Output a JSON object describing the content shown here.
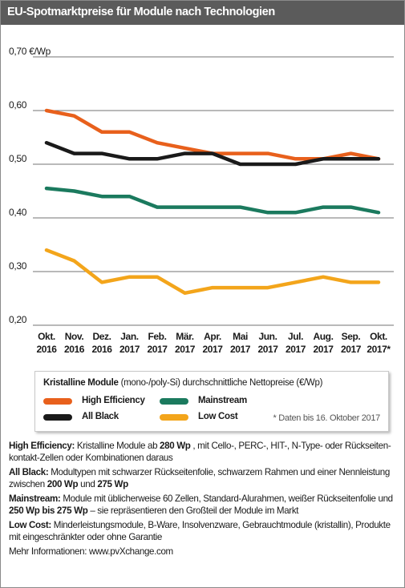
{
  "chart_data": {
    "type": "line",
    "title": "EU-Spotmarktpreise für Module nach Technologien",
    "categories": [
      "Okt. 2016",
      "Nov. 2016",
      "Dez. 2016",
      "Jan. 2017",
      "Feb. 2017",
      "Mär. 2017",
      "Apr. 2017",
      "Mai 2017",
      "Jun. 2017",
      "Jul. 2017",
      "Aug. 2017",
      "Sep. 2017",
      "Okt. 2017*"
    ],
    "series": [
      {
        "name": "High Efficiency",
        "color": "#e8601c",
        "values": [
          0.6,
          0.59,
          0.56,
          0.56,
          0.54,
          0.53,
          0.52,
          0.52,
          0.52,
          0.51,
          0.51,
          0.52,
          0.51
        ]
      },
      {
        "name": "All Black",
        "color": "#1a1a1a",
        "values": [
          0.54,
          0.52,
          0.52,
          0.51,
          0.51,
          0.52,
          0.52,
          0.5,
          0.5,
          0.5,
          0.51,
          0.51,
          0.51
        ]
      },
      {
        "name": "Mainstream",
        "color": "#1b7a5e",
        "values": [
          0.455,
          0.45,
          0.44,
          0.44,
          0.42,
          0.42,
          0.42,
          0.42,
          0.41,
          0.41,
          0.42,
          0.42,
          0.41
        ]
      },
      {
        "name": "Low Cost",
        "color": "#f3a51b",
        "values": [
          0.34,
          0.32,
          0.28,
          0.29,
          0.29,
          0.26,
          0.27,
          0.27,
          0.27,
          0.28,
          0.29,
          0.28,
          0.28
        ]
      }
    ],
    "ylim": [
      0.2,
      0.7
    ],
    "yticks": [
      {
        "value": 0.7,
        "label": "0,70 €/Wp"
      },
      {
        "value": 0.6,
        "label": "0,60"
      },
      {
        "value": 0.5,
        "label": "0,50"
      },
      {
        "value": 0.4,
        "label": "0,40"
      },
      {
        "value": 0.3,
        "label": "0,30"
      },
      {
        "value": 0.2,
        "label": "0,20"
      }
    ],
    "grid": true,
    "legend_title": "Kristalline Module",
    "legend_subtitle": "(mono-/poly-Si) durchschnittliche Nettopreise (€/Wp)",
    "footnote": "* Daten bis 16. Oktober 2017",
    "notes": [
      {
        "term": "High Efficiency:",
        "parts": [
          {
            "text": "Kristalline Module ab",
            "bold": false
          },
          {
            "text": "280 Wp",
            "bold": true
          },
          {
            "text": ", mit Cello-, PERC-, HIT-, N-Type- oder Rückseiten-kontakt-Zellen oder Kombinationen daraus",
            "bold": false
          }
        ]
      },
      {
        "term": "All Black:",
        "parts": [
          {
            "text": "Modultypen mit schwarzer Rückseitenfolie, schwarzem Rahmen und einer Nennleistung zwischen",
            "bold": false
          },
          {
            "text": "200 Wp",
            "bold": true
          },
          {
            "text": "und",
            "bold": false
          },
          {
            "text": "275 Wp",
            "bold": true
          }
        ]
      },
      {
        "term": "Mainstream:",
        "parts": [
          {
            "text": "Module mit üblicherweise 60 Zellen, Standard-Alurahmen, weißer Rückseitenfolie und",
            "bold": false
          },
          {
            "text": "250 Wp bis 275 Wp",
            "bold": true
          },
          {
            "text": "– sie repräsentieren den Großteil der Module im Markt",
            "bold": false
          }
        ]
      },
      {
        "term": "Low Cost:",
        "parts": [
          {
            "text": "Minderleistungsmodule, B-Ware, Insolvenzware, Gebrauchtmodule (kristallin), Produkte mit eingeschränkter oder ohne Garantie",
            "bold": false
          }
        ]
      }
    ],
    "more_info": "Mehr Informationen: www.pvXchange.com"
  }
}
